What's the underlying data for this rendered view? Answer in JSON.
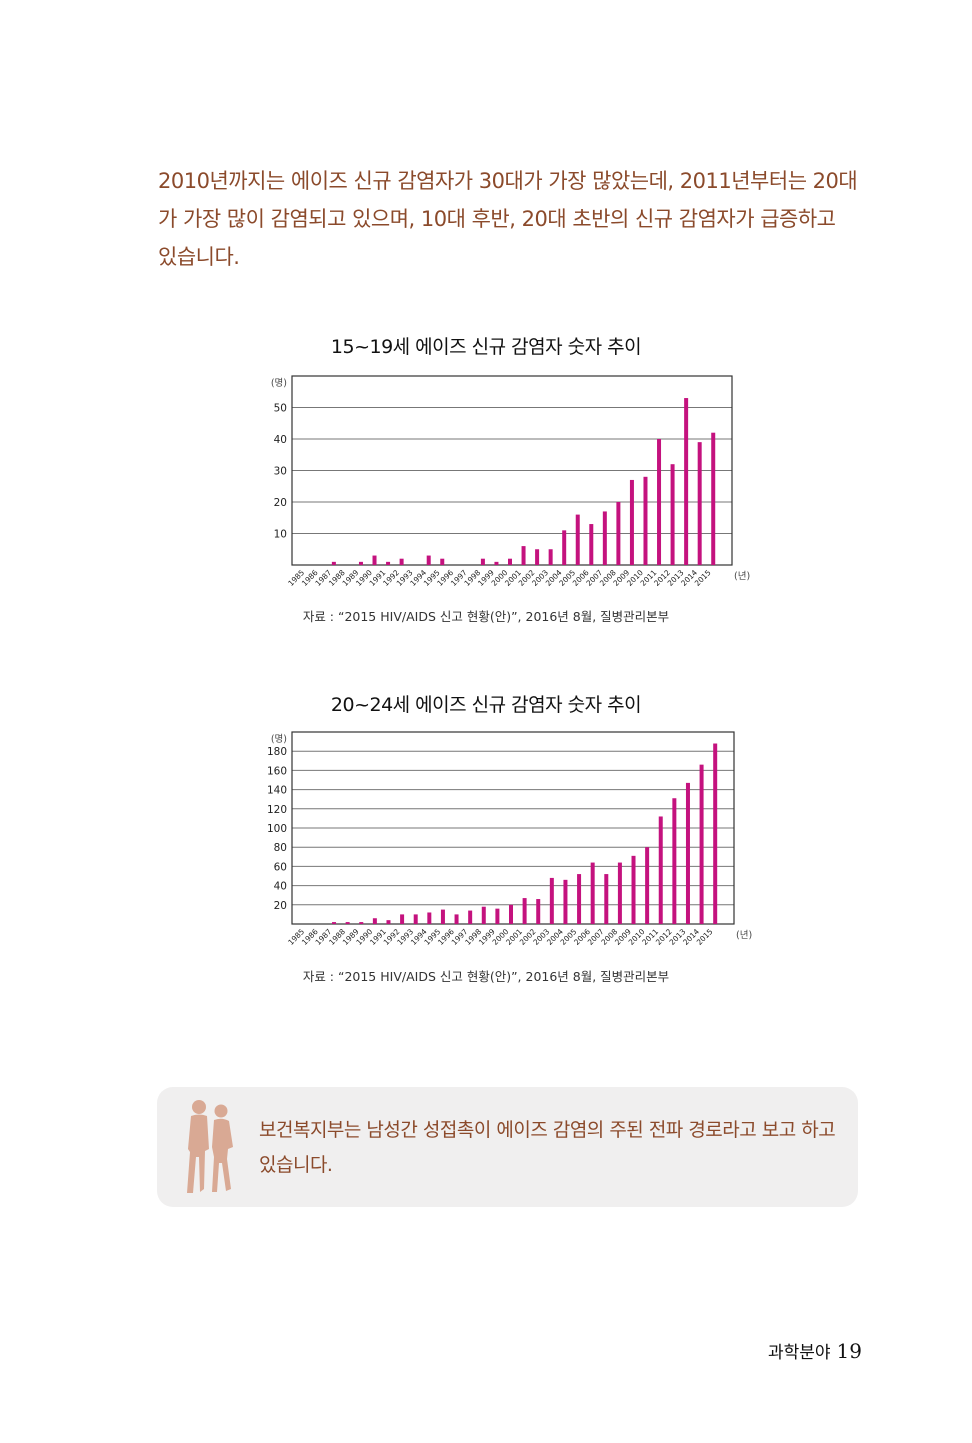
{
  "intro_text": "2010년까지는 에이즈 신규 감염자가 30대가 가장 많았는데, 2011년부터는 20대가 가장 많이 감염되고 있으며, 10대 후반, 20대 초반의 신규 감염자가 급증하고 있습니다.",
  "chart_data": [
    {
      "type": "bar",
      "title": "15~19세 에이즈 신규 감염자 숫자 추이",
      "ylabel": "(명)",
      "xlabel": "(년)",
      "ylim": [
        0,
        60
      ],
      "yticks": [
        10,
        20,
        30,
        40,
        50
      ],
      "grid": true,
      "categories": [
        "1985",
        "1986",
        "1987",
        "1988",
        "1989",
        "1990",
        "1991",
        "1992",
        "1993",
        "1994",
        "1995",
        "1996",
        "1997",
        "1998",
        "1999",
        "2000",
        "2001",
        "2002",
        "2003",
        "2004",
        "2005",
        "2006",
        "2007",
        "2008",
        "2009",
        "2010",
        "2011",
        "2012",
        "2013",
        "2014",
        "2015"
      ],
      "values": [
        0,
        0,
        1,
        0,
        1,
        3,
        1,
        2,
        0,
        3,
        2,
        0,
        0,
        2,
        1,
        2,
        6,
        5,
        5,
        11,
        16,
        13,
        17,
        20,
        27,
        28,
        40,
        32,
        53,
        39,
        42
      ],
      "color": "#c4127e",
      "source": "자료 : “2015 HIV/AIDS 신고 현황(안)”, 2016년 8월, 질병관리본부"
    },
    {
      "type": "bar",
      "title": "20~24세 에이즈 신규 감염자 숫자 추이",
      "ylabel": "(명)",
      "xlabel": "(년)",
      "ylim": [
        0,
        200
      ],
      "yticks": [
        20,
        40,
        60,
        80,
        100,
        120,
        140,
        160,
        180
      ],
      "grid": true,
      "categories": [
        "1985",
        "1986",
        "1987",
        "1988",
        "1989",
        "1990",
        "1991",
        "1992",
        "1993",
        "1994",
        "1995",
        "1996",
        "1997",
        "1998",
        "1999",
        "2000",
        "2001",
        "2002",
        "2003",
        "2004",
        "2005",
        "2006",
        "2007",
        "2008",
        "2009",
        "2010",
        "2011",
        "2012",
        "2013",
        "2014",
        "2015"
      ],
      "values": [
        0,
        0,
        2,
        2,
        2,
        6,
        4,
        10,
        10,
        12,
        15,
        10,
        14,
        18,
        16,
        20,
        27,
        26,
        48,
        46,
        52,
        64,
        52,
        64,
        71,
        80,
        112,
        131,
        147,
        166,
        188
      ],
      "color": "#c4127e",
      "source": "자료 : “2015 HIV/AIDS 신고 현황(안)”, 2016년 8월, 질병관리본부"
    }
  ],
  "note": {
    "text": "보건복지부는 남성간 성접촉이 에이즈 감염의 주된 전파 경로라고 보고 하고 있습니다.",
    "icon": "couple-silhouette-icon",
    "color": "#d9a994"
  },
  "footer": {
    "section": "과학분야",
    "page_number": "19"
  }
}
